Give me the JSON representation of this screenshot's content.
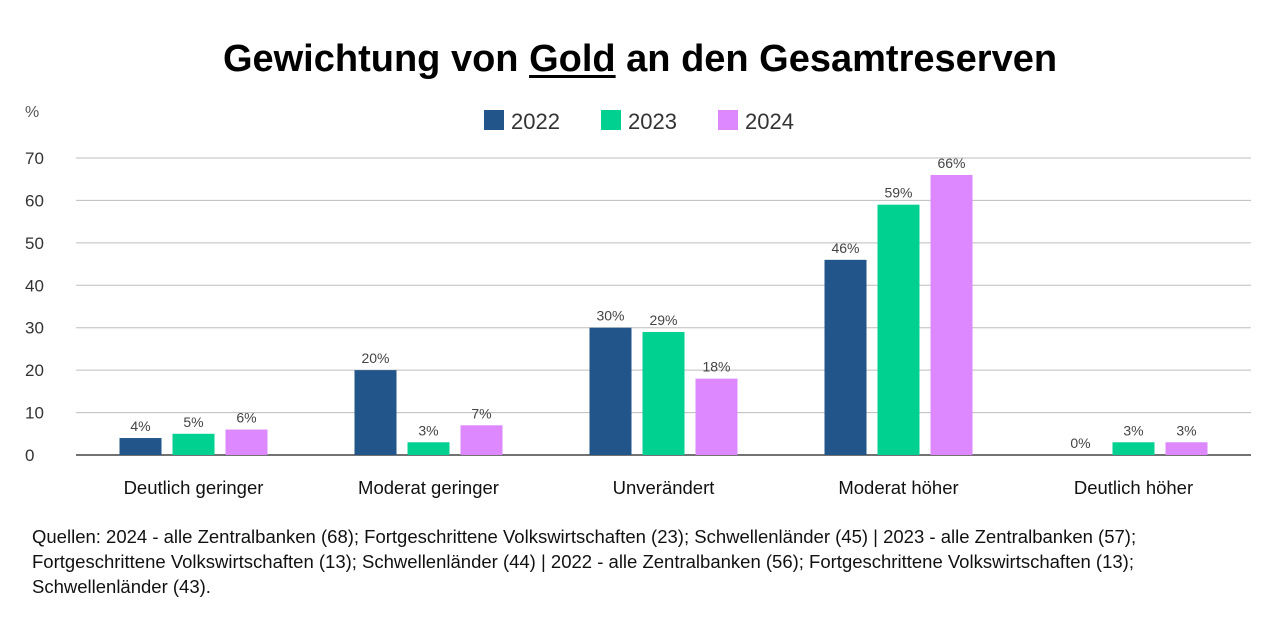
{
  "title": {
    "before": "Gewichtung von ",
    "emphasis": "Gold",
    "after": " an den Gesamtreserven"
  },
  "chart_data": {
    "type": "bar",
    "ylabel": "%",
    "ylim": [
      0,
      70
    ],
    "yticks": [
      0,
      10,
      20,
      30,
      40,
      50,
      60,
      70
    ],
    "grid": true,
    "legend_position": "top-center",
    "categories": [
      "Deutlich geringer",
      "Moderat geringer",
      "Unverändert",
      "Moderat höher",
      "Deutlich höher"
    ],
    "series": [
      {
        "name": "2022",
        "color": "#22568a",
        "values": [
          4,
          20,
          30,
          46,
          0
        ],
        "labels": [
          "4%",
          "20%",
          "30%",
          "46%",
          "0%"
        ]
      },
      {
        "name": "2023",
        "color": "#00d090",
        "values": [
          5,
          3,
          29,
          59,
          3
        ],
        "labels": [
          "5%",
          "3%",
          "29%",
          "59%",
          "3%"
        ]
      },
      {
        "name": "2024",
        "color": "#dd88ff",
        "values": [
          6,
          7,
          18,
          66,
          3
        ],
        "labels": [
          "6%",
          "7%",
          "18%",
          "66%",
          "3%"
        ]
      }
    ]
  },
  "footnote": "Quellen: 2024 - alle Zentralbanken (68); Fortgeschrittene Volkswirtschaften (23); Schwellenländer (45) | 2023 - alle Zentralbanken (57); Fortgeschrittene Volkswirtschaften (13); Schwellenländer (44) | 2022 - alle Zentralbanken (56); Fortgeschrittene Volkswirtschaften (13); Schwellenländer (43)."
}
